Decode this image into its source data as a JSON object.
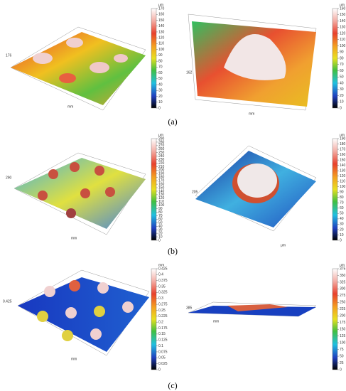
{
  "panels": [
    {
      "label": "(a)",
      "plots": [
        {
          "z_label": "176",
          "axis_unit": "mm",
          "colorbar": {
            "unit": "μm",
            "ticks": [
              170,
              160,
              150,
              140,
              130,
              120,
              110,
              100,
              90,
              80,
              70,
              60,
              50,
              40,
              30,
              20,
              10,
              0
            ]
          }
        },
        {
          "z_label": "162",
          "axis_unit": "mm",
          "colorbar": {
            "unit": "μm",
            "ticks": [
              160,
              150,
              140,
              130,
              120,
              110,
              100,
              90,
              80,
              70,
              60,
              50,
              40,
              30,
              20,
              10,
              0
            ]
          }
        }
      ]
    },
    {
      "label": "(b)",
      "plots": [
        {
          "z_label": "290",
          "axis_unit": "mm",
          "colorbar": {
            "unit": "μm",
            "ticks": [
              290,
              280,
              270,
              260,
              250,
              240,
              230,
              220,
              210,
              200,
              190,
              180,
              170,
              160,
              150,
              140,
              130,
              120,
              110,
              100,
              90,
              80,
              70,
              60,
              50,
              40,
              30,
              20,
              10,
              0
            ]
          }
        },
        {
          "z_label": "205",
          "axis_unit": "μm",
          "colorbar": {
            "unit": "μm",
            "ticks": [
              190,
              180,
              170,
              160,
              150,
              140,
              130,
              120,
              110,
              100,
              90,
              80,
              70,
              60,
              50,
              40,
              30,
              20,
              10,
              0
            ]
          }
        }
      ]
    },
    {
      "label": "(c)",
      "plots": [
        {
          "z_label": "0.425",
          "axis_unit": "mm",
          "colorbar": {
            "unit": "mm",
            "ticks": [
              0.425,
              0.4,
              0.375,
              0.35,
              0.325,
              0.3,
              0.275,
              0.25,
              0.225,
              0.2,
              0.175,
              0.15,
              0.125,
              0.1,
              0.075,
              0.05,
              0.025,
              0
            ]
          }
        },
        {
          "z_label": "385",
          "axis_unit": "mm",
          "colorbar": {
            "unit": "μm",
            "ticks": [
              375,
              350,
              325,
              300,
              275,
              250,
              225,
              200,
              175,
              150,
              125,
              100,
              75,
              50,
              25,
              0
            ]
          }
        }
      ]
    }
  ]
}
